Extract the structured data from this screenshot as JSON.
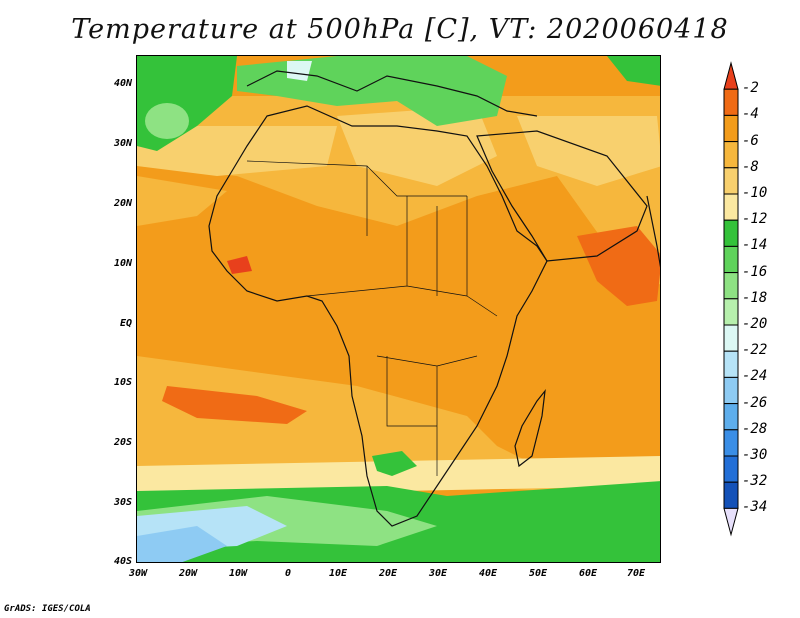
{
  "title": "Temperature at 500hPa [C], VT: 2020060418",
  "footer": "GrADS: IGES/COLA",
  "lat_labels": [
    "40N",
    "30N",
    "20N",
    "10N",
    "EQ",
    "10S",
    "20S",
    "30S",
    "40S"
  ],
  "lon_labels": [
    "30W",
    "20W",
    "10W",
    "0",
    "10E",
    "20E",
    "30E",
    "40E",
    "50E",
    "60E",
    "70E"
  ],
  "colorbar": {
    "labels": [
      "-2",
      "-4",
      "-6",
      "-8",
      "-10",
      "-12",
      "-14",
      "-16",
      "-18",
      "-20",
      "-22",
      "-24",
      "-26",
      "-28",
      "-30",
      "-32",
      "-34"
    ],
    "colors": [
      "#e8401c",
      "#f06b15",
      "#f39c1b",
      "#f6b73d",
      "#f8d06e",
      "#fbe8a1",
      "#34c23a",
      "#5fd35b",
      "#8ee283",
      "#b7f0ad",
      "#dcf8f4",
      "#b6e3f7",
      "#8ecbf3",
      "#5eaeec",
      "#3a8ee6",
      "#226fd7",
      "#1351b8",
      "#0c2a82"
    ]
  },
  "map": {
    "region": "Africa",
    "lon_range": [
      -30,
      75
    ],
    "lat_range": [
      -40,
      45
    ],
    "variable": "Temperature at 500hPa",
    "units": "C"
  }
}
